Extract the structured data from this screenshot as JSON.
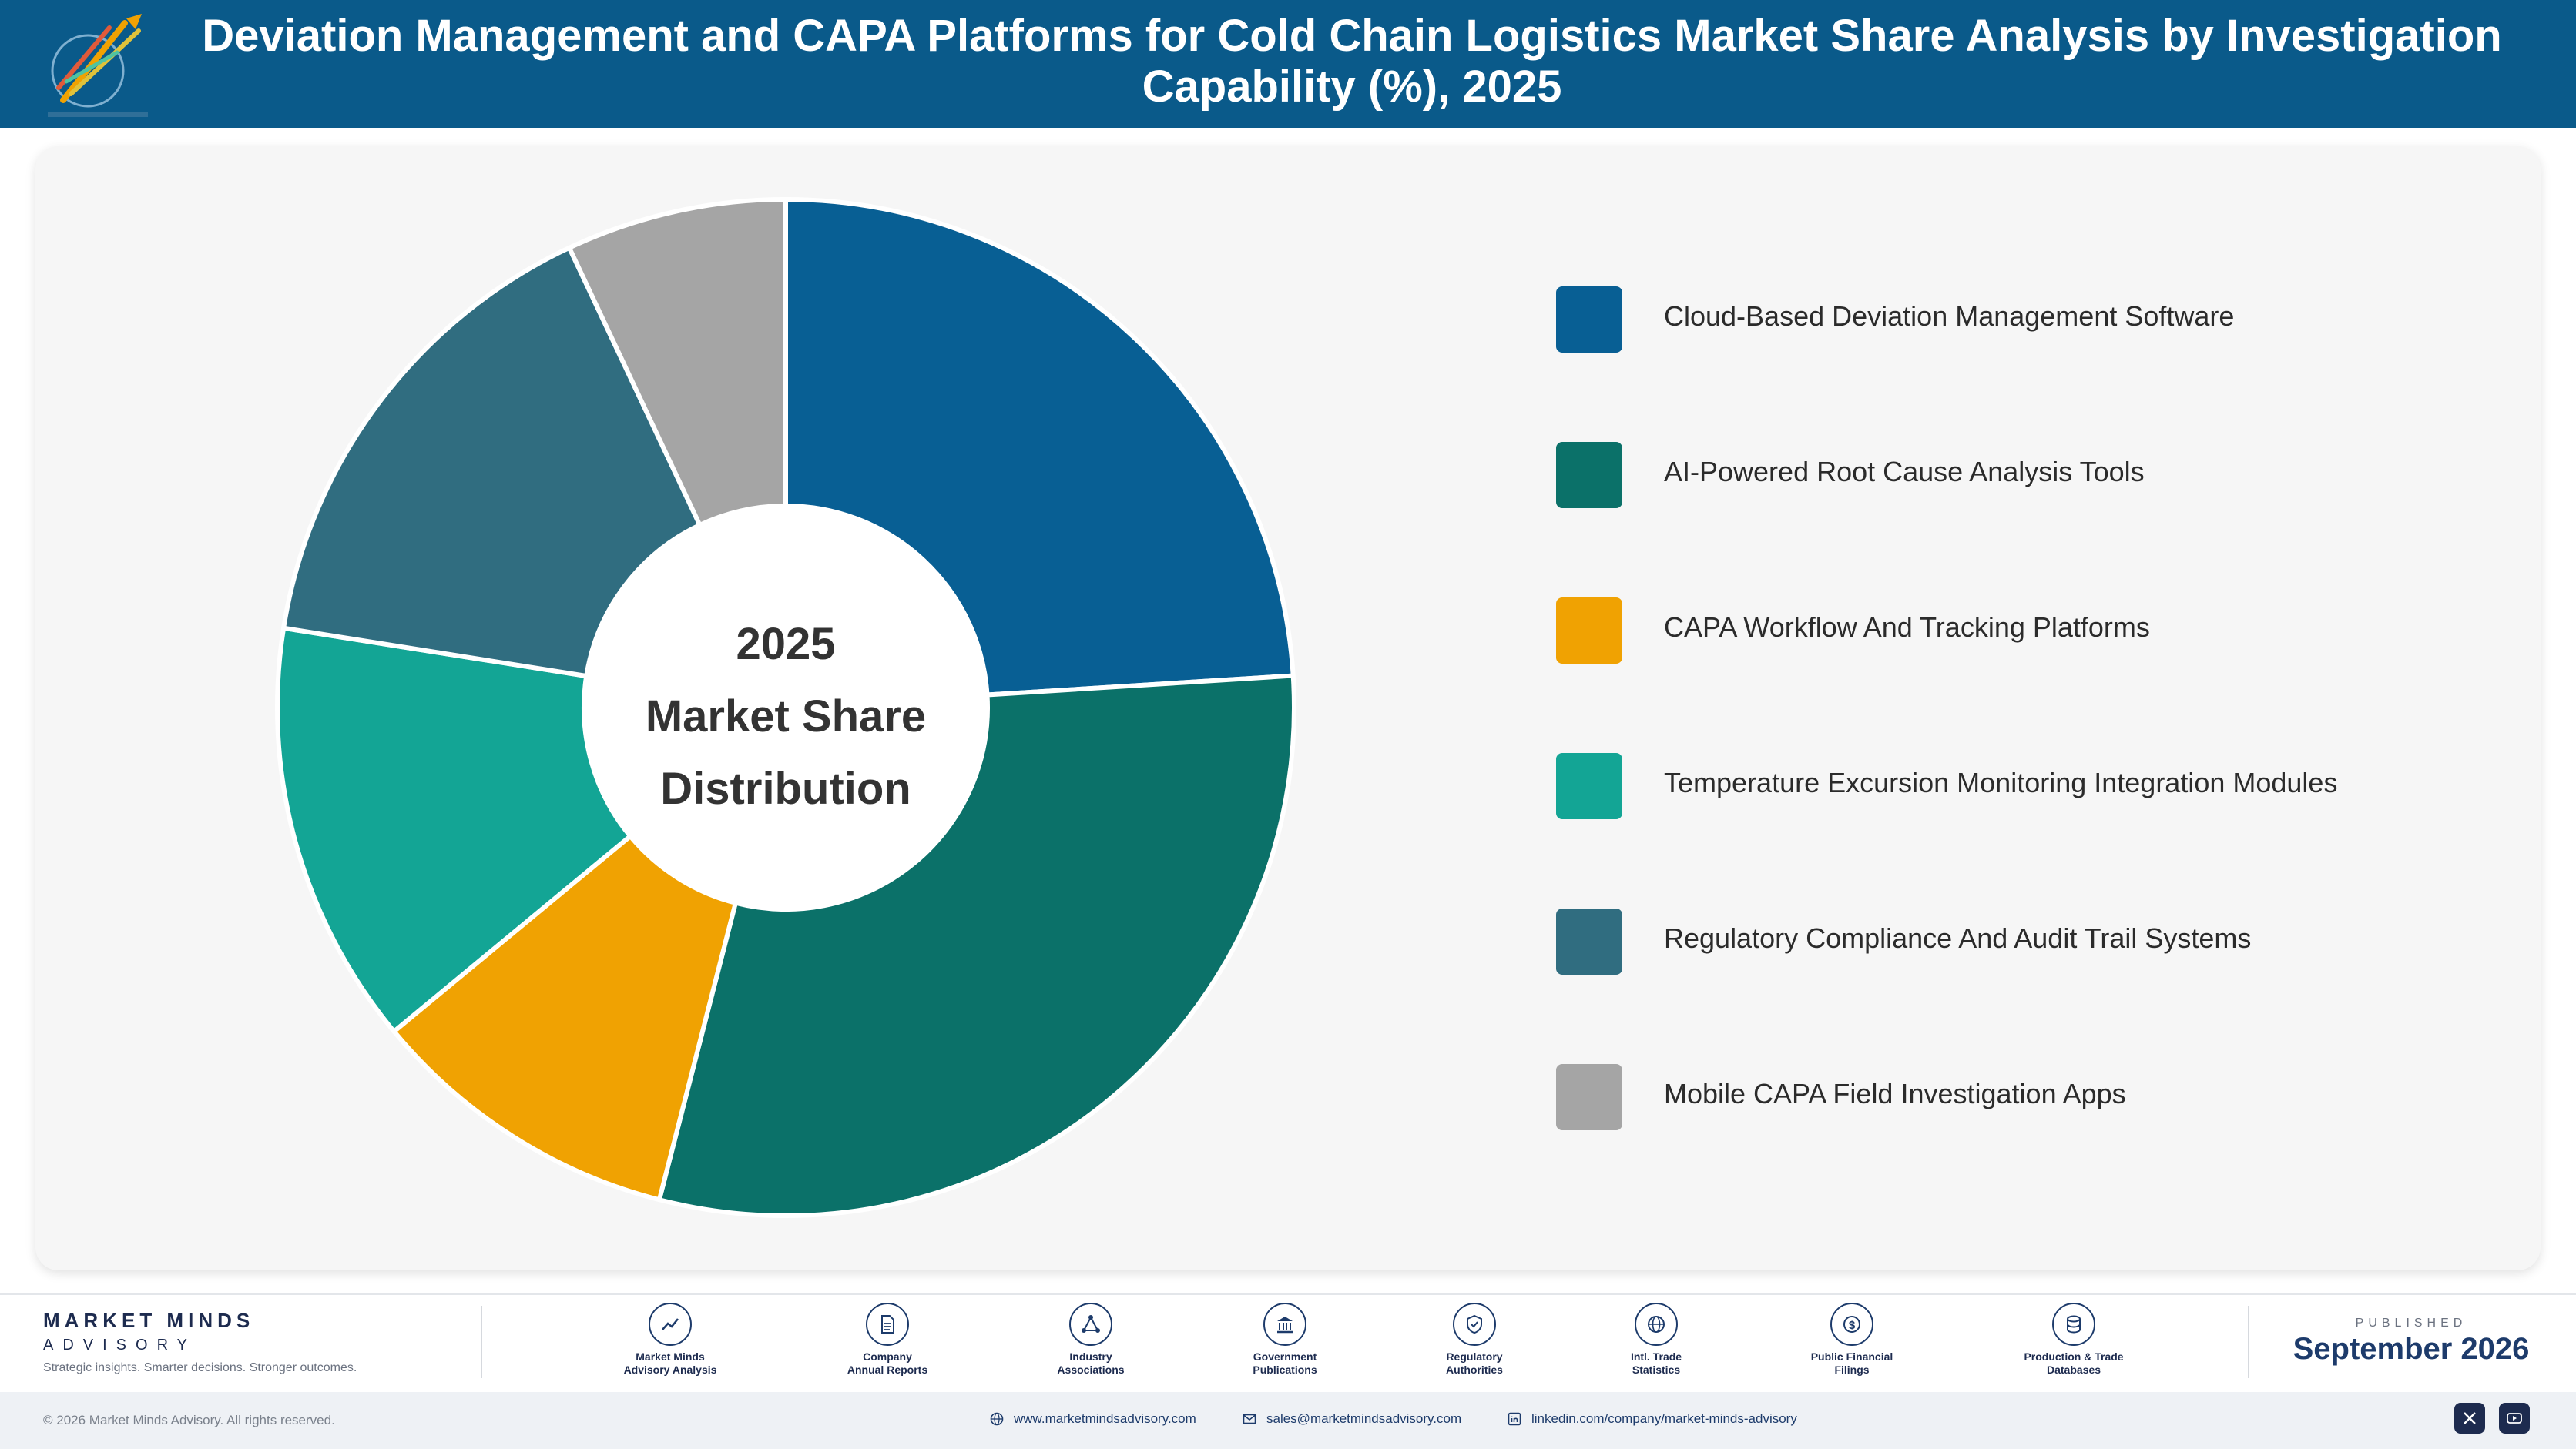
{
  "header": {
    "title_line1": "Deviation Management and CAPA Platforms for Cold Chain Logistics Market Share Analysis by Investigation",
    "title_line2": "Capability (%), 2025",
    "logo_icon": "market-minds-logo-icon"
  },
  "chart_data": {
    "type": "pie",
    "style": "donut",
    "title": "Deviation Management and CAPA Platforms for Cold Chain Logistics Market Share Analysis by Investigation Capability (%), 2025",
    "center_label": [
      "2025",
      "Market Share",
      "Distribution"
    ],
    "legend_position": "right",
    "slices": [
      {
        "label": "Cloud-Based Deviation Management Software",
        "value": 24.0,
        "color": "#085f94"
      },
      {
        "label": "AI-Powered Root Cause Analysis Tools",
        "value": 30.0,
        "color": "#0b7169"
      },
      {
        "label": "CAPA Workflow And Tracking Platforms",
        "value": 10.0,
        "color": "#f0a202"
      },
      {
        "label": "Temperature Excursion Monitoring Integration Modules",
        "value": 13.5,
        "color": "#13a595"
      },
      {
        "label": "Regulatory Compliance And Audit Trail Systems",
        "value": 15.5,
        "color": "#306d80"
      },
      {
        "label": "Mobile CAPA Field Investigation Apps",
        "value": 7.0,
        "color": "#a5a5a5"
      }
    ]
  },
  "footer": {
    "brand_name": "MARKET MINDS",
    "brand_sub": "ADVISORY",
    "brand_tag": "Strategic insights. Smarter decisions. Stronger outcomes.",
    "sources": [
      {
        "line1": "Market Minds",
        "line2": "Advisory Analysis",
        "icon": "trend-chart-icon"
      },
      {
        "line1": "Company",
        "line2": "Annual Reports",
        "icon": "document-icon"
      },
      {
        "line1": "Industry",
        "line2": "Associations",
        "icon": "network-icon"
      },
      {
        "line1": "Government",
        "line2": "Publications",
        "icon": "government-building-icon"
      },
      {
        "line1": "Regulatory",
        "line2": "Authorities",
        "icon": "shield-check-icon"
      },
      {
        "line1": "Intl. Trade",
        "line2": "Statistics",
        "icon": "globe-icon"
      },
      {
        "line1": "Public Financial",
        "line2": "Filings",
        "icon": "dollar-coin-icon"
      },
      {
        "line1": "Production & Trade",
        "line2": "Databases",
        "icon": "database-icon"
      }
    ],
    "published_label": "PUBLISHED",
    "published_date": "September 2026",
    "copyright": "© 2026 Market Minds Advisory. All rights reserved.",
    "website": "www.marketmindsadvisory.com",
    "email": "sales@marketmindsadvisory.com",
    "linkedin": "linkedin.com/company/market-minds-advisory",
    "social_icons": [
      "x-icon",
      "youtube-icon"
    ]
  }
}
